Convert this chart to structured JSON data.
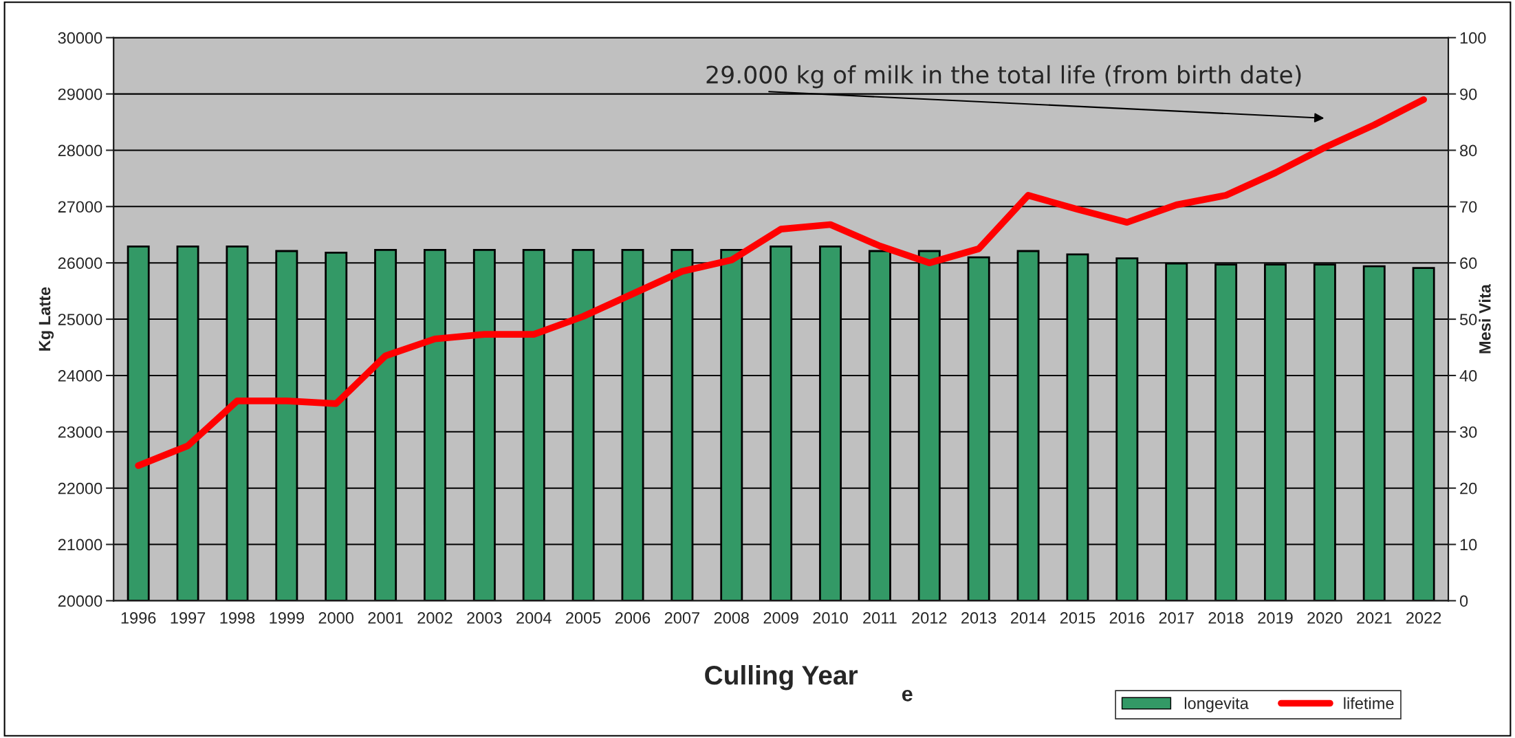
{
  "chart_data": {
    "type": "bar",
    "xlabel": "Culling Year",
    "ylabel": "Kg Latte",
    "y2label": "Mesi Vita",
    "categories": [
      "1996",
      "1997",
      "1998",
      "1999",
      "2000",
      "2001",
      "2002",
      "2003",
      "2004",
      "2005",
      "2006",
      "2007",
      "2008",
      "2009",
      "2010",
      "2011",
      "2012",
      "2013",
      "2014",
      "2015",
      "2016",
      "2017",
      "2018",
      "2019",
      "2020",
      "2021",
      "2022"
    ],
    "series": [
      {
        "name": "longevita",
        "color": "#339966",
        "values": [
          26290,
          26290,
          26290,
          26210,
          26180,
          26230,
          26230,
          26230,
          26230,
          26230,
          26230,
          26230,
          26230,
          26290,
          26290,
          26210,
          26210,
          26100,
          26210,
          26150,
          26080,
          25990,
          25970,
          25970,
          25970,
          25940,
          25910
        ]
      },
      {
        "name": "lifetime",
        "type": "line",
        "axis": "y2",
        "color": "#ff0000",
        "values": [
          24,
          27.5,
          35.5,
          35.5,
          35,
          43.5,
          46.5,
          47.3,
          47.3,
          50.5,
          54.5,
          58.5,
          60.5,
          66,
          66.8,
          63,
          60,
          62.5,
          72,
          69.5,
          67.2,
          70.3,
          72,
          76,
          80.5,
          84.5,
          89
        ]
      }
    ],
    "ylim": [
      20000,
      30000
    ],
    "yticks": [
      20000,
      21000,
      22000,
      23000,
      24000,
      25000,
      26000,
      27000,
      28000,
      29000,
      30000
    ],
    "y2lim": [
      0,
      100
    ],
    "y2ticks": [
      0,
      10,
      20,
      30,
      40,
      50,
      60,
      70,
      80,
      90,
      100
    ],
    "grid": "y",
    "legend": "bottom right",
    "line_style": "solid",
    "marker": "none",
    "annotations": [
      "29.000 kg of milk in the total life (from birth date)",
      "e"
    ]
  }
}
